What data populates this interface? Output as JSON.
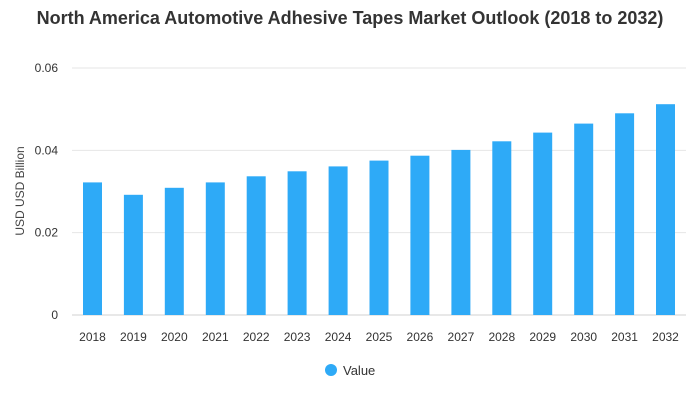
{
  "chart_data": {
    "type": "bar",
    "title": "North America Automotive Adhesive Tapes Market Outlook (2018 to 2032)",
    "xlabel": "",
    "ylabel": "USD USD Billion",
    "ylim": [
      0,
      0.06
    ],
    "yticks": [
      0,
      0.02,
      0.04,
      0.06
    ],
    "ytick_labels": [
      "0",
      "0.02",
      "0.04",
      "0.06"
    ],
    "grid": true,
    "legend": "bottom-center",
    "categories": [
      "2018",
      "2019",
      "2020",
      "2021",
      "2022",
      "2023",
      "2024",
      "2025",
      "2026",
      "2027",
      "2028",
      "2029",
      "2030",
      "2031",
      "2032"
    ],
    "series": [
      {
        "name": "Value",
        "color": "#2eaaf7",
        "values": [
          0.0322,
          0.0292,
          0.0309,
          0.0322,
          0.0337,
          0.0349,
          0.0361,
          0.0375,
          0.0387,
          0.0401,
          0.0422,
          0.0443,
          0.0465,
          0.049,
          0.0512
        ]
      }
    ]
  }
}
